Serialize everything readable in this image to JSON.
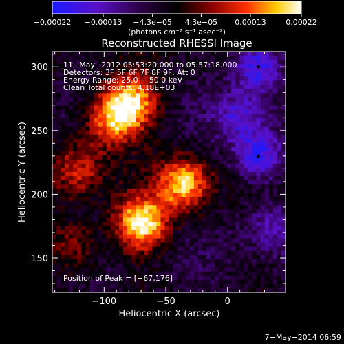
{
  "chart_data": {
    "type": "heatmap",
    "title": "Reconstructed RHESSI Image",
    "xlabel": "Heliocentric X (arcsec)",
    "ylabel": "Heliocentric Y (arcsec)",
    "xlim": [
      -142,
      47
    ],
    "ylim": [
      123,
      312
    ],
    "xticks": [
      -100,
      -50,
      0
    ],
    "xtick_labels": [
      "−100",
      "−50",
      "0"
    ],
    "yticks": [
      150,
      200,
      250,
      300
    ],
    "ytick_labels": [
      "150",
      "200",
      "250",
      "300"
    ],
    "colorbar": {
      "min": -0.00022,
      "max": 0.00022,
      "ticks": [
        -0.00022,
        -0.00013,
        -4.3e-05,
        4.3e-05,
        0.00013,
        0.00022
      ],
      "tick_labels": [
        "−0.00022",
        "−0.00013",
        "−4.3e−05",
        "4.3e−05",
        "0.00013",
        "0.00022"
      ],
      "unit_label": "(photons cm⁻² s⁻¹ asec⁻²)",
      "colormap": [
        "#1a1aff",
        "#5a10c8",
        "#2a0040",
        "#000000",
        "#8a0000",
        "#ff3000",
        "#ffcc00",
        "#ffffff"
      ]
    },
    "annotations": [
      "11−May−2012 05:53:20.000 to 05:57:18.000",
      "Detectors: 3F 5F 6F 7F 8F 9F, Att 0",
      "Energy Range: 25.0 − 50.0 keV",
      "Clean     Total counts: 4.18E+03"
    ],
    "peak_label": "Position of Peak = [−67,176]",
    "peak": {
      "x": -67,
      "y": 176
    },
    "positive_sources": [
      {
        "x": -70,
        "y": 177,
        "intensity": 1.0
      },
      {
        "x": -35,
        "y": 208,
        "intensity": 0.85
      },
      {
        "x": -95,
        "y": 258,
        "intensity": 0.7
      },
      {
        "x": -78,
        "y": 272,
        "intensity": 0.85
      },
      {
        "x": -120,
        "y": 220,
        "intensity": 0.5
      },
      {
        "x": -125,
        "y": 160,
        "intensity": 0.4
      }
    ],
    "negative_sources": [
      {
        "x": 25,
        "y": 300,
        "intensity": 0.9
      },
      {
        "x": 25,
        "y": 230,
        "intensity": 0.9
      },
      {
        "x": 10,
        "y": 262,
        "intensity": 0.6
      },
      {
        "x": 35,
        "y": 175,
        "intensity": 0.5
      }
    ],
    "grid": false
  },
  "footer": {
    "timestamp": "7−May−2014 06:59"
  }
}
